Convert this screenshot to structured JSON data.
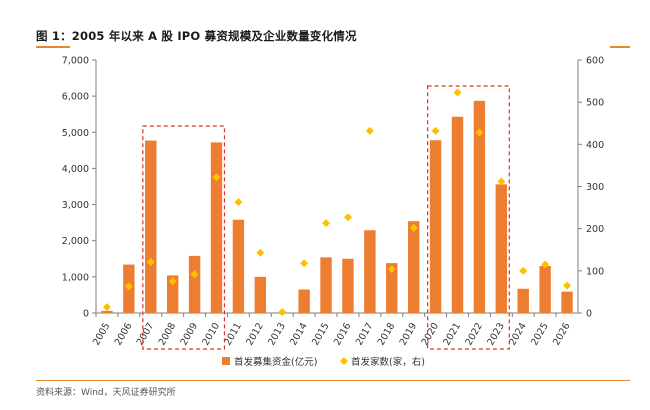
{
  "title": "图 1：2005 年以来 A 股 IPO 募资规模及企业数量变化情况",
  "source": "资料来源：Wind，天风证券研究所",
  "colors": {
    "bar": "#ed7d31",
    "marker": "#ffc000",
    "accent": "#e8862a",
    "highlight": "#d9342b"
  },
  "chart_data": {
    "type": "bar",
    "categories": [
      "2005",
      "2006",
      "2007",
      "2008",
      "2009",
      "2010",
      "2011",
      "2012",
      "2013",
      "2014",
      "2015",
      "2016",
      "2017",
      "2018",
      "2019",
      "2020",
      "2021",
      "2022",
      "2023",
      "2024",
      "2025",
      "2026"
    ],
    "series": [
      {
        "name": "首发募集资金(亿元)",
        "type": "bar",
        "axis": "left",
        "values": [
          58,
          1340,
          4770,
          1040,
          1580,
          4720,
          2580,
          1000,
          0,
          650,
          1540,
          1500,
          2290,
          1380,
          2540,
          4780,
          5430,
          5870,
          3560,
          670,
          1300,
          590
        ]
      },
      {
        "name": "首发家数(家，右)",
        "type": "scatter",
        "axis": "right",
        "values": [
          14,
          63,
          121,
          75,
          92,
          322,
          263,
          143,
          2,
          118,
          213,
          227,
          432,
          104,
          202,
          432,
          523,
          428,
          312,
          100,
          115,
          65
        ]
      }
    ],
    "y_left": {
      "min": 0,
      "max": 7000,
      "ticks": [
        "0",
        "1,000",
        "2,000",
        "3,000",
        "4,000",
        "5,000",
        "6,000",
        "7,000"
      ]
    },
    "y_right": {
      "min": 0,
      "max": 600,
      "ticks": [
        "0",
        "100",
        "200",
        "300",
        "400",
        "500",
        "600"
      ]
    },
    "highlight_ranges": [
      [
        "2007",
        "2010"
      ],
      [
        "2020",
        "2023"
      ]
    ],
    "legend_position": "bottom",
    "grid": false
  }
}
